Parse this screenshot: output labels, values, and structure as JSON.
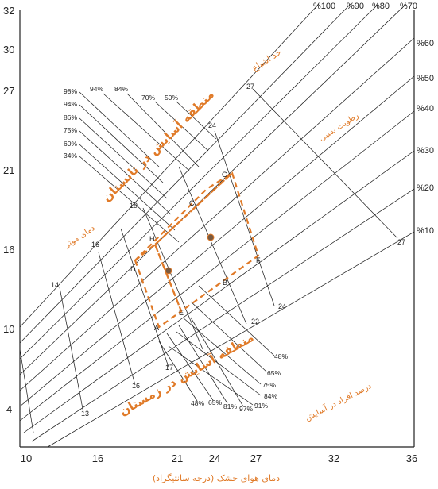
{
  "chart_data": {
    "type": "diagram",
    "title": "",
    "xlabel": "دمای هوای خشک (درجه سانتیگراد)",
    "xlim": [
      10,
      36
    ],
    "ylim": [
      2.5,
      32
    ],
    "x_ticks": [
      10,
      16,
      21,
      24,
      27,
      32,
      36
    ],
    "y_ticks": [
      4,
      10,
      16,
      21,
      27,
      30,
      32
    ],
    "rh_curve_labels": [
      {
        "text": "%100",
        "value": 100
      },
      {
        "text": "%90",
        "value": 90
      },
      {
        "text": "%80",
        "value": 80
      },
      {
        "text": "%70",
        "value": 70
      },
      {
        "text": "%60",
        "value": 60
      },
      {
        "text": "%50",
        "value": 50
      },
      {
        "text": "%40",
        "value": 40
      },
      {
        "text": "%30",
        "value": 30
      },
      {
        "text": "%20",
        "value": 20
      },
      {
        "text": "%10",
        "value": 10
      }
    ],
    "wet_bulb_labels": [
      "13",
      "14",
      "16",
      "16",
      "17",
      "19",
      "22",
      "24",
      "24",
      "27",
      "27"
    ],
    "summer_rh_labels": [
      "98%",
      "94%",
      "86%",
      "75%",
      "60%",
      "34%"
    ],
    "summer_top_labels": [
      "94%",
      "84%",
      "70%",
      "50%"
    ],
    "winter_rh_labels": [
      "48%",
      "65%",
      "75%",
      "84%",
      "91%"
    ],
    "winter_bottom_labels": [
      "48%",
      "65%",
      "81%",
      "97%"
    ],
    "annotations": {
      "saturation": "حد اشباع",
      "relative_humidity": "رطوبت نسبی",
      "effective_temp": "دمای موثر",
      "summer_zone": "منطقه آسایش در تابستان",
      "winter_zone": "منطقه آسایش در زمستان",
      "percent_comfort": "درصد افراد در آسایش"
    },
    "points": [
      "A",
      "B",
      "C",
      "D",
      "E",
      "F",
      "G",
      "H"
    ],
    "colors": {
      "accent": "#e07a28",
      "line": "#222222"
    }
  }
}
